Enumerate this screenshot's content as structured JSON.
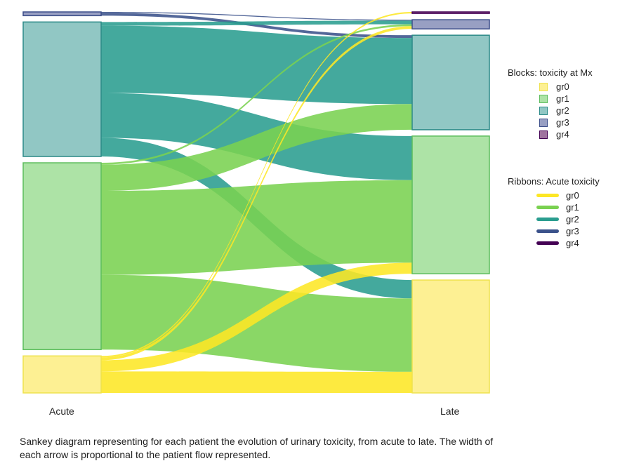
{
  "chart_data": {
    "type": "sankey",
    "stages": [
      "Acute",
      "Late"
    ],
    "categories": [
      "gr0",
      "gr1",
      "gr2",
      "gr3",
      "gr4"
    ],
    "block_colors": {
      "gr0": "#fdf093",
      "gr1": "#ade3a6",
      "gr2": "#91c7c4",
      "gr3": "#989fc3",
      "gr4": "#a0739f"
    },
    "block_borders": {
      "gr0": "#efe24e",
      "gr1": "#5dbd5d",
      "gr2": "#2c8a88",
      "gr3": "#3d4f8a",
      "gr4": "#440154"
    },
    "ribbon_colors": {
      "gr0": "#fde725",
      "gr1": "#7ad151",
      "gr2": "#2a9d8f",
      "gr3": "#3b528b",
      "gr4": "#440154"
    },
    "flows": [
      {
        "from": "gr3",
        "to": "gr3",
        "value": 0.5
      },
      {
        "from": "gr3",
        "to": "gr2",
        "value": 1.5
      },
      {
        "from": "gr2",
        "to": "gr3",
        "value": 2
      },
      {
        "from": "gr2",
        "to": "gr2",
        "value": 36
      },
      {
        "from": "gr2",
        "to": "gr1",
        "value": 24
      },
      {
        "from": "gr2",
        "to": "gr0",
        "value": 10
      },
      {
        "from": "gr1",
        "to": "gr3",
        "value": 1
      },
      {
        "from": "gr1",
        "to": "gr2",
        "value": 14
      },
      {
        "from": "gr1",
        "to": "gr1",
        "value": 45
      },
      {
        "from": "gr1",
        "to": "gr0",
        "value": 40
      },
      {
        "from": "gr0",
        "to": "gr4",
        "value": 0.8
      },
      {
        "from": "gr0",
        "to": "gr3",
        "value": 1.5
      },
      {
        "from": "gr0",
        "to": "gr1",
        "value": 6
      },
      {
        "from": "gr0",
        "to": "gr0",
        "value": 11.5
      }
    ]
  },
  "legend_blocks": {
    "title": "Blocks: toxicity at Mx",
    "items": [
      "gr0",
      "gr1",
      "gr2",
      "gr3",
      "gr4"
    ]
  },
  "legend_ribbons": {
    "title": "Ribbons: Acute toxicity",
    "items": [
      "gr0",
      "gr1",
      "gr2",
      "gr3",
      "gr4"
    ]
  },
  "axis_labels": {
    "left": "Acute",
    "right": "Late"
  },
  "caption": "Sankey diagram representing for each patient the evolution of urinary toxicity, from acute to late. The width of each arrow is proportional to the patient flow represented."
}
